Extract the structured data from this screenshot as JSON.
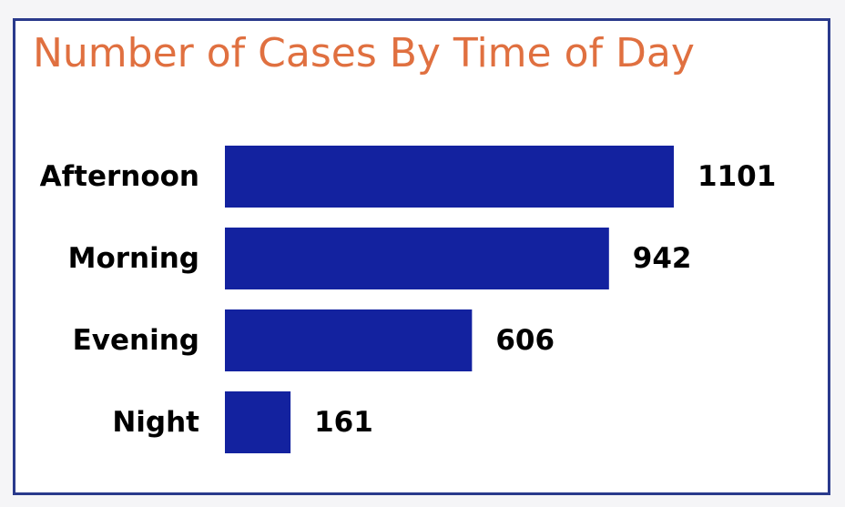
{
  "chart_data": {
    "type": "bar",
    "orientation": "horizontal",
    "title": "Number of Cases By Time of Day",
    "categories": [
      "Afternoon",
      "Morning",
      "Evening",
      "Night"
    ],
    "values": [
      1101,
      942,
      606,
      161
    ],
    "xlim": [
      0,
      1101
    ],
    "grid": false,
    "legend": "none",
    "bar_color": "#13229f",
    "title_color": "#e07040",
    "border_color": "#2a3a8c"
  }
}
